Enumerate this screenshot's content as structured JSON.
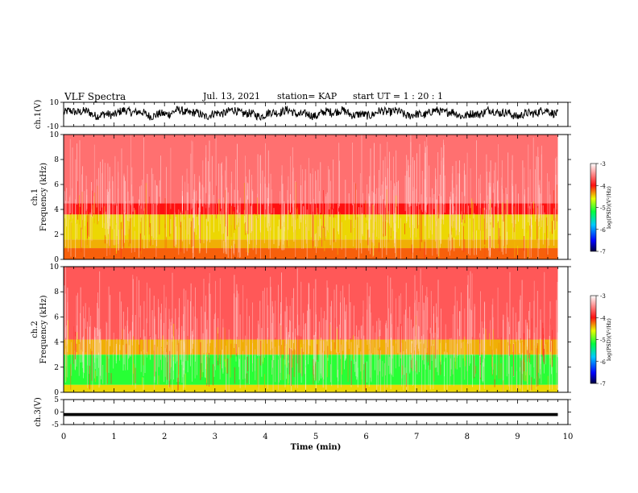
{
  "header": {
    "title": "VLF Spectra",
    "date": "Jul. 13, 2021",
    "station": "station= KAP",
    "start": "start UT =  1 : 20 : 1"
  },
  "chart_data": [
    {
      "type": "line",
      "panel": "ch1-waveform",
      "ylabel": "ch.1(V)",
      "ylim": [
        -10,
        10
      ],
      "yticks": [
        "10",
        "-10"
      ],
      "x_range_min": [
        0,
        9.8
      ],
      "trace": "dense noisy signal, mostly between about 5 and -5"
    },
    {
      "type": "heatmap",
      "panel": "ch1-spectrogram",
      "ylabel": "ch.1\nFrequency (kHz)",
      "ylim": [
        0,
        10
      ],
      "yticks": [
        "0",
        "2",
        "4",
        "6",
        "8",
        "10"
      ],
      "x_range_min": [
        0,
        9.8
      ],
      "bands": [
        {
          "from_khz": 0,
          "to_khz": 0.9,
          "level": -4.2
        },
        {
          "from_khz": 0.9,
          "to_khz": 1.6,
          "level": -4.4
        },
        {
          "from_khz": 1.6,
          "to_khz": 3.6,
          "level": -4.5
        },
        {
          "from_khz": 3.6,
          "to_khz": 4.5,
          "level": -4.0
        },
        {
          "from_khz": 4.5,
          "to_khz": 10,
          "level": -3.6
        }
      ],
      "colorbar": {
        "label": "log(PSD)(V²/Hz)",
        "min": -7,
        "max": -3,
        "ticks": [
          "-3",
          "-4",
          "-5",
          "-6",
          "-7"
        ]
      }
    },
    {
      "type": "heatmap",
      "panel": "ch2-spectrogram",
      "ylabel": "ch.2\nFrequency (kHz)",
      "ylim": [
        0,
        10
      ],
      "yticks": [
        "0",
        "2",
        "4",
        "6",
        "8",
        "10"
      ],
      "x_range_min": [
        0,
        9.8
      ],
      "bands": [
        {
          "from_khz": 0,
          "to_khz": 0.6,
          "level": -4.5
        },
        {
          "from_khz": 0.6,
          "to_khz": 3.0,
          "level": -5.1
        },
        {
          "from_khz": 3.0,
          "to_khz": 4.2,
          "level": -4.4
        },
        {
          "from_khz": 4.2,
          "to_khz": 10,
          "level": -3.7
        }
      ],
      "colorbar": {
        "label": "log(PSD)(V²/Hz)",
        "min": -7,
        "max": -3,
        "ticks": [
          "-3",
          "-4",
          "-5",
          "-6",
          "-7"
        ]
      }
    },
    {
      "type": "line",
      "panel": "ch3-waveform",
      "ylabel": "ch.3(V)",
      "ylim": [
        -5,
        5
      ],
      "yticks": [
        "5",
        "0",
        "-5"
      ],
      "x_range_min": [
        0,
        9.8
      ],
      "trace": "narrow band near -1"
    }
  ],
  "xaxis": {
    "label": "Time (min)",
    "ticks": [
      "0",
      "1",
      "2",
      "3",
      "4",
      "5",
      "6",
      "7",
      "8",
      "9",
      "10"
    ],
    "xlim": [
      0,
      10
    ]
  }
}
